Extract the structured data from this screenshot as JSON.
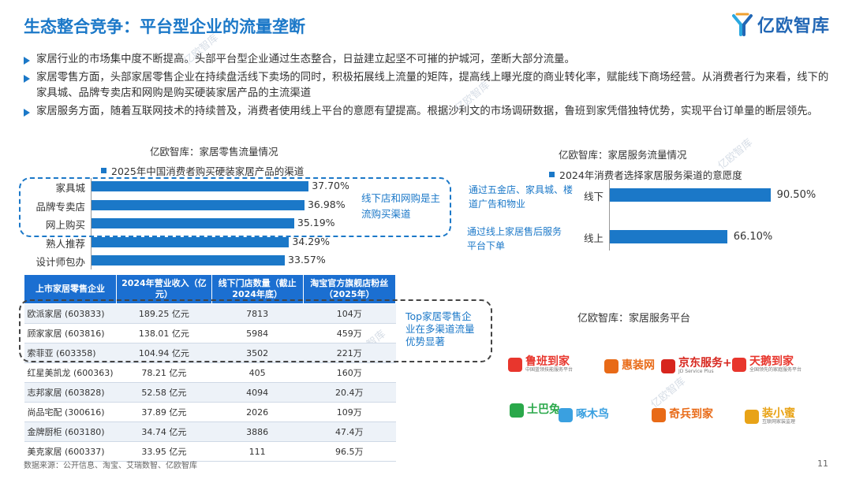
{
  "page": {
    "title": "生态整合竞争：平台型企业的流量垄断",
    "logo_text": "亿欧智库",
    "page_number": "11",
    "source": "数据来源：公开信息、淘宝、艾瑞数智、亿欧智库",
    "watermark": "亿欧智库"
  },
  "bullets": [
    "家居行业的市场集中度不断提高。头部平台型企业通过生态整合，日益建立起坚不可摧的护城河，垄断大部分流量。",
    "家居零售方面，头部家居零售企业在持续盘活线下卖场的同时，积极拓展线上流量的矩阵，提高线上曝光度的商业转化率，赋能线下商场经营。从消费者行为来看，线下的家具城、品牌专卖店和网购是购买硬装家居产品的主流渠道",
    "家居服务方面，随着互联网技术的持续普及，消费者使用线上平台的意愿有望提高。根据沙利文的市场调研数据，鲁班到家凭借独特优势，实现平台订单量的断层领先。"
  ],
  "retail": {
    "section_title": "亿欧智库：家居零售流量情况",
    "note": "线下店和网购是主流购买渠道",
    "table_note": "Top家居零售企业在多渠道流量优势显著",
    "table_headers": [
      "上市家居零售企业",
      "2024年营业收入（亿元）",
      "线下门店数量（截止2024年底）",
      "淘宝官方旗舰店粉丝（2025年）"
    ],
    "table_rows": [
      [
        "欧派家居 (603833)",
        "189.25 亿元",
        "7813",
        "104万"
      ],
      [
        "顾家家居 (603816)",
        "138.01 亿元",
        "5984",
        "459万"
      ],
      [
        "索菲亚 (603358)",
        "104.94 亿元",
        "3502",
        "221万"
      ],
      [
        "红星美凯龙 (600363)",
        "78.21 亿元",
        "405",
        "160万"
      ],
      [
        "志邦家居 (603828)",
        "52.58 亿元",
        "4094",
        "20.4万"
      ],
      [
        "尚品宅配 (300616)",
        "37.89 亿元",
        "2026",
        "109万"
      ],
      [
        "金牌厨柜 (603180)",
        "34.74 亿元",
        "3886",
        "47.4万"
      ],
      [
        "美克家居 (600337)",
        "33.95 亿元",
        "111",
        "96.5万"
      ]
    ]
  },
  "service": {
    "section_title": "亿欧智库：家居服务流量情况",
    "platform_title": "亿欧智库：家居服务平台",
    "platforms": [
      {
        "name": "鲁班到家",
        "sub": "中国蓝领技能服务平台",
        "color": "#e8362d"
      },
      {
        "name": "惠装网",
        "sub": "",
        "color": "#e86a17"
      },
      {
        "name": "京东服务+",
        "sub": "JD Service Plus",
        "color": "#d7261e"
      },
      {
        "name": "天鹅到家",
        "sub": "全国领先的家庭服务平台",
        "color": "#e8362d"
      },
      {
        "name": "土巴兔",
        "sub": "",
        "color": "#2aa84a"
      },
      {
        "name": "啄木鸟",
        "sub": "",
        "color": "#3aa0e0"
      },
      {
        "name": "奇兵到家",
        "sub": "",
        "color": "#e86a17"
      },
      {
        "name": "装小蜜",
        "sub": "互联网家装监理",
        "color": "#e8a317"
      }
    ]
  },
  "chart_data": [
    {
      "type": "bar",
      "title": "2025年中国消费者购买硬装家居产品的渠道",
      "categories": [
        "家具城",
        "品牌专卖店",
        "网上购买",
        "熟人推荐",
        "设计师包办"
      ],
      "values": [
        37.7,
        36.98,
        35.19,
        34.29,
        33.57
      ],
      "labels": [
        "37.70%",
        "36.98%",
        "35.19%",
        "34.29%",
        "33.57%"
      ],
      "unit": "%"
    },
    {
      "type": "bar",
      "title": "2024年消费者选择家居服务渠道的意愿度",
      "categories": [
        "线下",
        "线上"
      ],
      "category_notes": [
        "通过五金店、家具城、楼道广告和物业",
        "通过线上家居售后服务平台下单"
      ],
      "values": [
        90.5,
        66.1
      ],
      "labels": [
        "90.50%",
        "66.10%"
      ],
      "unit": "%"
    }
  ]
}
